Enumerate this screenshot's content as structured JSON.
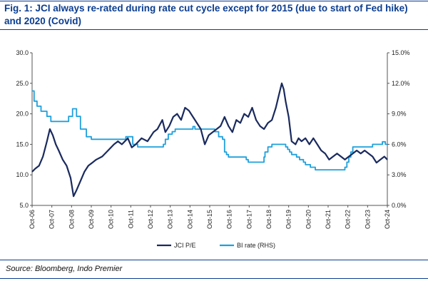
{
  "title": "Fig. 1: JCI always re-rated during rate cut cycle except for 2015 (due to start of Fed hike) and 2020 (Covid)",
  "source": "Source: Bloomberg, Indo Premier",
  "colors": {
    "title": "#0a3d91",
    "jci": "#1a2a5e",
    "bi": "#1ea0dc"
  },
  "chart_data": {
    "type": "line",
    "title": "Fig. 1: JCI always re-rated during rate cut cycle except for 2015 (due to start of Fed hike) and 2020 (Covid)",
    "xlabel": "",
    "ylabel_left": "",
    "ylabel_right": "",
    "x_ticks": [
      "Oct-06",
      "Oct-07",
      "Oct-08",
      "Oct-09",
      "Oct-10",
      "Oct-11",
      "Oct-12",
      "Oct-13",
      "Oct-14",
      "Oct-15",
      "Oct-16",
      "Oct-17",
      "Oct-18",
      "Oct-19",
      "Oct-20",
      "Oct-21",
      "Oct-22",
      "Oct-23",
      "Oct-24"
    ],
    "y_left_ticks": [
      "5.0",
      "10.0",
      "15.0",
      "20.0",
      "25.0",
      "30.0"
    ],
    "y_right_ticks": [
      "0.0%",
      "3.0%",
      "6.0%",
      "9.0%",
      "12.0%",
      "15.0%"
    ],
    "ylim_left": [
      5,
      30
    ],
    "ylim_right": [
      0,
      15
    ],
    "xlim": [
      2006.75,
      2024.75
    ],
    "legend": {
      "position": "bottom-center"
    },
    "grid": false,
    "series": [
      {
        "name": "JCI P/E",
        "axis": "left",
        "x": [
          2006.75,
          2006.9,
          2007.1,
          2007.3,
          2007.5,
          2007.65,
          2007.8,
          2007.95,
          2008.1,
          2008.3,
          2008.5,
          2008.7,
          2008.85,
          2009.0,
          2009.2,
          2009.4,
          2009.6,
          2009.8,
          2010.0,
          2010.3,
          2010.6,
          2010.9,
          2011.1,
          2011.3,
          2011.6,
          2011.8,
          2012.0,
          2012.3,
          2012.6,
          2012.9,
          2013.1,
          2013.35,
          2013.5,
          2013.7,
          2013.9,
          2014.1,
          2014.3,
          2014.5,
          2014.7,
          2014.9,
          2015.1,
          2015.3,
          2015.5,
          2015.7,
          2015.9,
          2016.1,
          2016.3,
          2016.5,
          2016.7,
          2016.9,
          2017.1,
          2017.3,
          2017.5,
          2017.7,
          2017.9,
          2018.1,
          2018.3,
          2018.5,
          2018.7,
          2018.9,
          2019.1,
          2019.25,
          2019.4,
          2019.5,
          2019.6,
          2019.75,
          2019.9,
          2020.1,
          2020.25,
          2020.4,
          2020.6,
          2020.8,
          2021.0,
          2021.2,
          2021.4,
          2021.6,
          2021.8,
          2022.0,
          2022.2,
          2022.4,
          2022.6,
          2022.8,
          2023.0,
          2023.2,
          2023.4,
          2023.6,
          2023.8,
          2024.0,
          2024.2,
          2024.4,
          2024.6,
          2024.75
        ],
        "values": [
          10.5,
          11.0,
          11.5,
          13.0,
          15.5,
          17.5,
          16.5,
          15.0,
          14.0,
          12.5,
          11.5,
          9.5,
          6.5,
          7.5,
          9.0,
          10.5,
          11.5,
          12.0,
          12.5,
          13.0,
          14.0,
          15.0,
          15.5,
          15.0,
          16.0,
          14.5,
          15.0,
          16.0,
          15.5,
          17.0,
          17.5,
          19.0,
          17.0,
          18.0,
          19.5,
          20.0,
          19.0,
          21.0,
          20.5,
          19.5,
          18.5,
          17.5,
          15.0,
          16.5,
          17.0,
          17.5,
          18.0,
          19.5,
          18.0,
          17.0,
          19.0,
          18.5,
          20.0,
          19.5,
          21.0,
          19.0,
          18.0,
          17.5,
          18.5,
          19.0,
          21.0,
          23.0,
          25.0,
          24.0,
          22.0,
          19.5,
          15.5,
          15.0,
          16.0,
          15.5,
          16.0,
          15.0,
          16.0,
          15.0,
          14.0,
          13.5,
          12.5,
          13.0,
          13.5,
          13.0,
          12.5,
          13.0,
          13.5,
          14.0,
          13.5,
          14.0,
          13.5,
          13.0,
          12.0,
          12.5,
          13.0,
          12.5
        ]
      },
      {
        "name": "BI rate (RHS)",
        "axis": "right",
        "x": [
          2006.75,
          2006.85,
          2007.0,
          2007.2,
          2007.5,
          2007.7,
          2007.9,
          2008.1,
          2008.4,
          2008.6,
          2008.8,
          2009.0,
          2009.2,
          2009.5,
          2009.75,
          2010.5,
          2011.5,
          2011.85,
          2012.1,
          2012.5,
          2013.0,
          2013.4,
          2013.5,
          2013.65,
          2013.85,
          2014.0,
          2014.9,
          2015.0,
          2015.5,
          2015.9,
          2016.0,
          2016.2,
          2016.4,
          2016.5,
          2016.6,
          2016.7,
          2016.8,
          2016.9,
          2017.5,
          2017.6,
          2017.7,
          2017.9,
          2018.0,
          2018.35,
          2018.5,
          2018.55,
          2018.7,
          2018.9,
          2019.5,
          2019.6,
          2019.7,
          2019.8,
          2019.9,
          2020.0,
          2020.15,
          2020.3,
          2020.5,
          2020.6,
          2020.85,
          2021.1,
          2021.6,
          2022.5,
          2022.6,
          2022.7,
          2022.8,
          2022.9,
          2023.0,
          2023.9,
          2024.0,
          2024.25,
          2024.5,
          2024.65,
          2024.75
        ],
        "values": [
          11.25,
          10.25,
          9.75,
          9.25,
          8.75,
          8.25,
          8.25,
          8.25,
          8.25,
          8.75,
          9.5,
          8.75,
          7.5,
          6.75,
          6.5,
          6.5,
          6.75,
          6.0,
          5.75,
          5.75,
          5.75,
          6.0,
          6.5,
          7.0,
          7.25,
          7.5,
          7.75,
          7.5,
          7.5,
          7.5,
          7.25,
          6.75,
          6.5,
          5.25,
          5.0,
          4.75,
          4.75,
          4.75,
          4.75,
          4.5,
          4.25,
          4.25,
          4.25,
          4.25,
          4.75,
          5.25,
          5.75,
          6.0,
          6.0,
          5.75,
          5.5,
          5.25,
          5.0,
          5.0,
          4.75,
          4.5,
          4.25,
          4.0,
          3.75,
          3.5,
          3.5,
          3.5,
          3.75,
          4.25,
          4.75,
          5.25,
          5.75,
          5.75,
          6.0,
          6.0,
          6.25,
          6.0,
          6.0
        ]
      }
    ]
  }
}
